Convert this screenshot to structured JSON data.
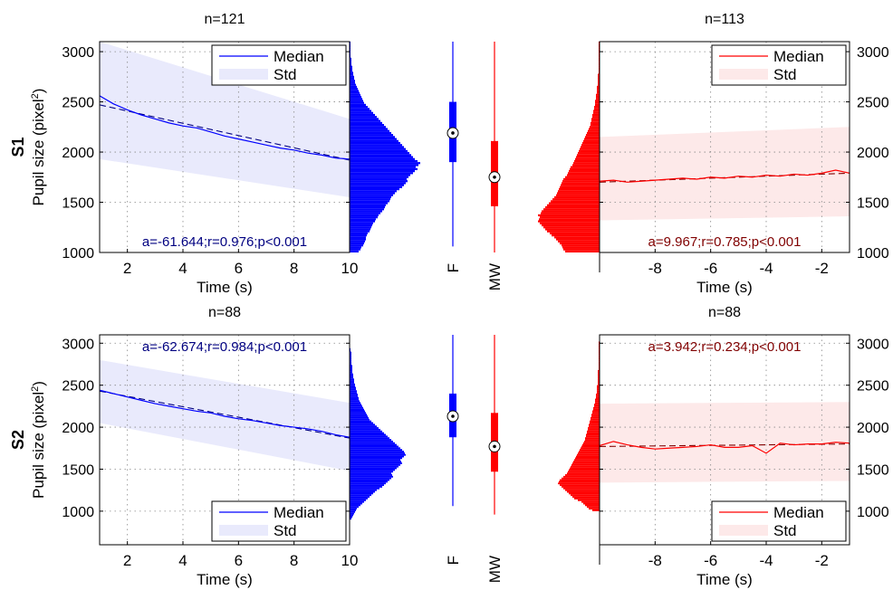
{
  "chart_data": [
    {
      "type": "line",
      "row_label": "S1",
      "panel": "left",
      "title": "n=121",
      "xlabel": "Time (s)",
      "ylabel": "Pupil size (pixel²)",
      "xlim": [
        1,
        10
      ],
      "ylim": [
        1000,
        3100
      ],
      "x_ticks": [
        2,
        4,
        6,
        8,
        10
      ],
      "y_ticks": [
        1000,
        1500,
        2000,
        2500,
        3000
      ],
      "color": "#0000ff",
      "legend": {
        "placement": "top-right",
        "entries": [
          "Median",
          "Std"
        ]
      },
      "annotation": "a=-61.644;r=0.976;p<0.001",
      "series": [
        {
          "name": "Median",
          "x": [
            1,
            1.5,
            2,
            2.5,
            3,
            3.5,
            4,
            4.5,
            5,
            5.5,
            6,
            6.5,
            7,
            7.5,
            8,
            8.5,
            9,
            9.5,
            10
          ],
          "values": [
            2560,
            2480,
            2420,
            2370,
            2330,
            2290,
            2260,
            2240,
            2200,
            2160,
            2130,
            2100,
            2070,
            2040,
            2020,
            1990,
            1970,
            1940,
            1930
          ]
        },
        {
          "name": "Std",
          "x": [
            1,
            10
          ],
          "upper": [
            3100,
            2330
          ],
          "lower": [
            1930,
            1550
          ]
        },
        {
          "name": "fit",
          "x": [
            1,
            10
          ],
          "values": [
            2470,
            1920
          ]
        }
      ],
      "grid": true
    },
    {
      "type": "line",
      "row_label": "S1",
      "panel": "right",
      "title": "n=113",
      "xlabel": "Time (s)",
      "ylabel": "",
      "xlim": [
        -10,
        -1
      ],
      "ylim": [
        1000,
        3100
      ],
      "x_ticks": [
        -8,
        -6,
        -4,
        -2
      ],
      "y_ticks": [
        1000,
        1500,
        2000,
        2500,
        3000
      ],
      "color": "#ff0000",
      "legend": {
        "placement": "top-right",
        "entries": [
          "Median",
          "Std"
        ]
      },
      "annotation": "a=9.967;r=0.785;p<0.001",
      "series": [
        {
          "name": "Median",
          "x": [
            -10,
            -9.5,
            -9,
            -8.5,
            -8,
            -7.5,
            -7,
            -6.5,
            -6,
            -5.5,
            -5,
            -4.5,
            -4,
            -3.5,
            -3,
            -2.5,
            -2,
            -1.5,
            -1
          ],
          "values": [
            1710,
            1720,
            1700,
            1710,
            1720,
            1730,
            1740,
            1730,
            1750,
            1740,
            1760,
            1750,
            1770,
            1760,
            1780,
            1770,
            1790,
            1820,
            1790
          ]
        },
        {
          "name": "Std",
          "x": [
            -10,
            -1
          ],
          "upper": [
            2150,
            2250
          ],
          "lower": [
            1320,
            1360
          ]
        },
        {
          "name": "fit",
          "x": [
            -10,
            -1
          ],
          "values": [
            1700,
            1790
          ]
        }
      ],
      "grid": true
    },
    {
      "type": "line",
      "row_label": "S2",
      "panel": "left",
      "title": "n=88",
      "xlabel": "Time (s)",
      "ylabel": "Pupil size (pixel²)",
      "xlim": [
        1,
        10
      ],
      "ylim": [
        600,
        3100
      ],
      "x_ticks": [
        2,
        4,
        6,
        8,
        10
      ],
      "y_ticks": [
        1000,
        1500,
        2000,
        2500,
        3000
      ],
      "color": "#0000ff",
      "legend": {
        "placement": "bottom-right",
        "entries": [
          "Median",
          "Std"
        ]
      },
      "annotation": "a=-62.674;r=0.984;p<0.001",
      "series": [
        {
          "name": "Median",
          "x": [
            1,
            1.5,
            2,
            2.5,
            3,
            3.5,
            4,
            4.5,
            5,
            5.5,
            6,
            6.5,
            7,
            7.5,
            8,
            8.5,
            9,
            9.5,
            10
          ],
          "values": [
            2440,
            2400,
            2360,
            2320,
            2280,
            2250,
            2220,
            2190,
            2170,
            2130,
            2100,
            2080,
            2050,
            2020,
            2000,
            1980,
            1950,
            1910,
            1880
          ]
        },
        {
          "name": "Std",
          "x": [
            1,
            10
          ],
          "upper": [
            2800,
            2290
          ],
          "lower": [
            2050,
            1480
          ]
        },
        {
          "name": "fit",
          "x": [
            1,
            10
          ],
          "values": [
            2430,
            1870
          ]
        }
      ],
      "grid": true
    },
    {
      "type": "line",
      "row_label": "S2",
      "panel": "right",
      "title": "n=88",
      "xlabel": "Time (s)",
      "ylabel": "",
      "xlim": [
        -10,
        -1
      ],
      "ylim": [
        600,
        3100
      ],
      "x_ticks": [
        -8,
        -6,
        -4,
        -2
      ],
      "y_ticks": [
        1000,
        1500,
        2000,
        2500,
        3000
      ],
      "color": "#ff0000",
      "legend": {
        "placement": "bottom-right",
        "entries": [
          "Median",
          "Std"
        ]
      },
      "annotation": "a=3.942;r=0.234;p<0.001",
      "series": [
        {
          "name": "Median",
          "x": [
            -10,
            -9.5,
            -9,
            -8.5,
            -8,
            -7.5,
            -7,
            -6.5,
            -6,
            -5.5,
            -5,
            -4.5,
            -4,
            -3.5,
            -3,
            -2.5,
            -2,
            -1.5,
            -1
          ],
          "values": [
            1780,
            1830,
            1790,
            1760,
            1740,
            1750,
            1760,
            1770,
            1790,
            1760,
            1760,
            1780,
            1690,
            1810,
            1790,
            1800,
            1800,
            1820,
            1810
          ]
        },
        {
          "name": "Std",
          "x": [
            -10,
            -1
          ],
          "upper": [
            2280,
            2300
          ],
          "lower": [
            1340,
            1360
          ]
        },
        {
          "name": "fit",
          "x": [
            -10,
            -1
          ],
          "values": [
            1770,
            1800
          ]
        }
      ],
      "grid": true
    },
    {
      "type": "bar",
      "row_label": "S1",
      "panel": "histogram-F",
      "orientation": "horizontal",
      "color": "#0000ff",
      "bin_size": 20,
      "y_start": 1000,
      "ylim": [
        1000,
        3100
      ],
      "counts": [
        10,
        12,
        13,
        15,
        16,
        17,
        18,
        18,
        19,
        20,
        22,
        23,
        24,
        25,
        26,
        28,
        29,
        31,
        32,
        34,
        36,
        38,
        39,
        40,
        42,
        44,
        45,
        46,
        48,
        50,
        52,
        55,
        58,
        60,
        62,
        64,
        63,
        65,
        67,
        70,
        72,
        75,
        73,
        76,
        78,
        75,
        72,
        70,
        68,
        66,
        64,
        62,
        60,
        58,
        56,
        54,
        52,
        50,
        48,
        46,
        44,
        42,
        40,
        38,
        36,
        34,
        32,
        30,
        28,
        26,
        24,
        22,
        20,
        18,
        16,
        15,
        14,
        13,
        12,
        11,
        10,
        9,
        8,
        7,
        6,
        6,
        5,
        5,
        4,
        4,
        3,
        3,
        3,
        2,
        2,
        2,
        2,
        1,
        1,
        1,
        1,
        1,
        1,
        1,
        1
      ]
    },
    {
      "type": "bar",
      "row_label": "S1",
      "panel": "histogram-MW",
      "orientation": "horizontal",
      "color": "#ff0000",
      "bin_size": 20,
      "y_start": 1000,
      "ylim": [
        1000,
        3100
      ],
      "counts": [
        38,
        40,
        41,
        42,
        44,
        46,
        48,
        50,
        53,
        55,
        58,
        60,
        62,
        64,
        66,
        68,
        67,
        66,
        68,
        65,
        64,
        62,
        60,
        58,
        56,
        54,
        52,
        50,
        48,
        47,
        46,
        45,
        44,
        43,
        42,
        41,
        40,
        38,
        36,
        35,
        34,
        33,
        32,
        30,
        29,
        28,
        27,
        26,
        25,
        24,
        23,
        22,
        21,
        20,
        19,
        18,
        17,
        16,
        15,
        14,
        13,
        12,
        11,
        10,
        10,
        9,
        9,
        8,
        8,
        7,
        7,
        6,
        6,
        5,
        5,
        5,
        4,
        4,
        4,
        3,
        3,
        3,
        3,
        2,
        2,
        2,
        2,
        2,
        2,
        1,
        1,
        1,
        1,
        1,
        1,
        1,
        1,
        1,
        1,
        1,
        1,
        1,
        1,
        1,
        1
      ]
    },
    {
      "type": "bar",
      "row_label": "S2",
      "panel": "histogram-F",
      "orientation": "horizontal",
      "color": "#0000ff",
      "bin_size": 20,
      "y_start": 900,
      "ylim": [
        600,
        3100
      ],
      "counts": [
        2,
        3,
        4,
        5,
        6,
        7,
        8,
        10,
        12,
        14,
        16,
        18,
        20,
        22,
        24,
        26,
        28,
        30,
        33,
        36,
        38,
        40,
        42,
        44,
        46,
        48,
        47,
        46,
        48,
        50,
        52,
        54,
        56,
        58,
        57,
        56,
        58,
        60,
        62,
        61,
        60,
        58,
        56,
        54,
        52,
        50,
        48,
        46,
        44,
        42,
        40,
        38,
        36,
        34,
        32,
        30,
        28,
        26,
        24,
        22,
        21,
        20,
        19,
        18,
        17,
        16,
        15,
        14,
        13,
        12,
        11,
        10,
        10,
        9,
        9,
        8,
        8,
        7,
        7,
        6,
        6,
        5,
        5,
        5,
        4,
        4,
        4,
        3,
        3,
        3,
        3,
        3,
        2,
        2,
        2,
        2,
        2,
        2,
        2,
        2,
        1,
        1
      ]
    },
    {
      "type": "bar",
      "row_label": "S2",
      "panel": "histogram-MW",
      "orientation": "horizontal",
      "color": "#ff0000",
      "bin_size": 20,
      "y_start": 1000,
      "ylim": [
        600,
        3100
      ],
      "counts": [
        8,
        12,
        14,
        16,
        18,
        20,
        24,
        28,
        30,
        32,
        34,
        36,
        38,
        40,
        42,
        44,
        46,
        45,
        44,
        42,
        40,
        38,
        36,
        35,
        34,
        33,
        32,
        31,
        30,
        29,
        28,
        27,
        26,
        25,
        24,
        23,
        22,
        21,
        20,
        19,
        18,
        17,
        16,
        16,
        15,
        15,
        14,
        14,
        13,
        13,
        12,
        12,
        11,
        11,
        10,
        10,
        9,
        9,
        8,
        8,
        7,
        7,
        6,
        6,
        5,
        5,
        5,
        4,
        4,
        4,
        3,
        3,
        3,
        3,
        3,
        2,
        2,
        2,
        2,
        2,
        2,
        2,
        2,
        2,
        1,
        1,
        1,
        1,
        1,
        1,
        1,
        1,
        1,
        1,
        1,
        1,
        1,
        1,
        1,
        1,
        1
      ]
    },
    {
      "type": "box",
      "row_label": "S1",
      "panel": "boxplot",
      "categories": [
        "F",
        "MW"
      ],
      "colors": [
        "#0000ff",
        "#ff0000"
      ],
      "ylim": [
        1000,
        3100
      ],
      "boxes": [
        {
          "name": "F",
          "min": 1060,
          "q1": 1900,
          "median": 2190,
          "q3": 2500,
          "max": 3100
        },
        {
          "name": "MW",
          "min": 1000,
          "q1": 1460,
          "median": 1750,
          "q3": 2110,
          "max": 3100
        }
      ]
    },
    {
      "type": "box",
      "row_label": "S2",
      "panel": "boxplot",
      "categories": [
        "F",
        "MW"
      ],
      "colors": [
        "#0000ff",
        "#ff0000"
      ],
      "ylim": [
        600,
        3100
      ],
      "boxes": [
        {
          "name": "F",
          "min": 1060,
          "q1": 1880,
          "median": 2130,
          "q3": 2400,
          "max": 3100
        },
        {
          "name": "MW",
          "min": 960,
          "q1": 1470,
          "median": 1770,
          "q3": 2170,
          "max": 3100
        }
      ]
    }
  ]
}
